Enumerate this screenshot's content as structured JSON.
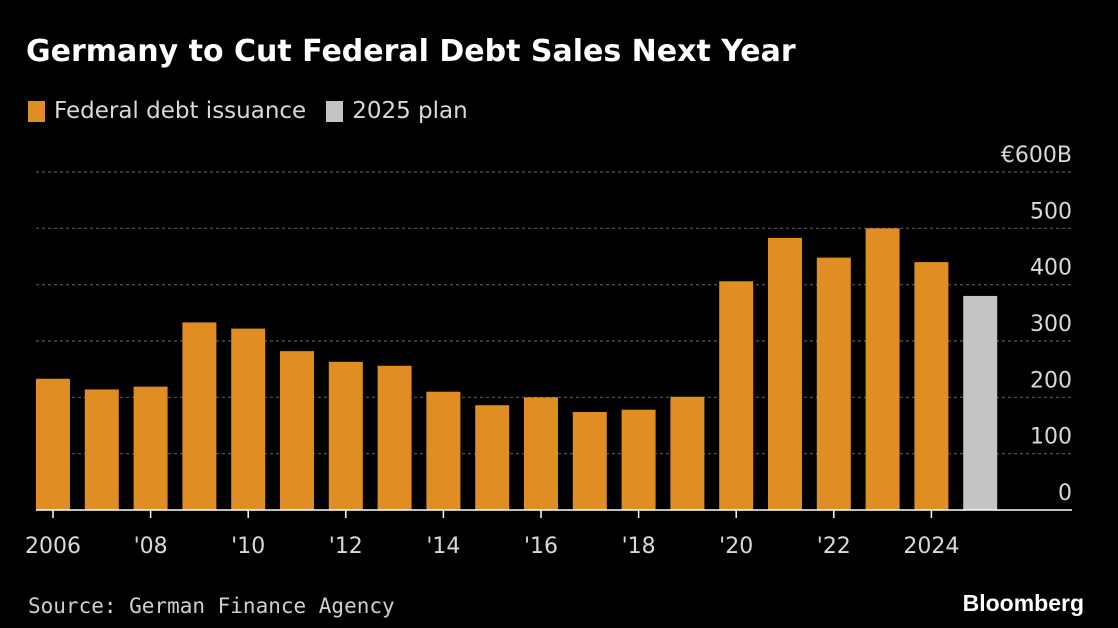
{
  "title": "Germany to Cut Federal Debt Sales Next Year",
  "legend": [
    {
      "label": "Federal debt issuance",
      "color": "#e08e24"
    },
    {
      "label": "2025 plan",
      "color": "#c4c4c4"
    }
  ],
  "source": "Source: German Finance Agency",
  "logo": "Bloomberg",
  "chart_data": {
    "type": "bar",
    "categories": [
      "2006",
      "2007",
      "2008",
      "2009",
      "2010",
      "2011",
      "2012",
      "2013",
      "2014",
      "2015",
      "2016",
      "2017",
      "2018",
      "2019",
      "2020",
      "2021",
      "2022",
      "2023",
      "2024",
      "2025"
    ],
    "series": [
      {
        "name": "Federal debt issuance",
        "values": [
          233,
          214,
          219,
          333,
          322,
          282,
          263,
          256,
          210,
          186,
          200,
          174,
          178,
          201,
          406,
          483,
          448,
          500,
          440,
          null
        ],
        "color": "#e08e24"
      },
      {
        "name": "2025 plan",
        "values": [
          null,
          null,
          null,
          null,
          null,
          null,
          null,
          null,
          null,
          null,
          null,
          null,
          null,
          null,
          null,
          null,
          null,
          null,
          null,
          380
        ],
        "color": "#c4c4c4"
      }
    ],
    "x_tick_labels": [
      {
        "category": "2006",
        "label": "2006"
      },
      {
        "category": "2008",
        "label": "'08"
      },
      {
        "category": "2010",
        "label": "'10"
      },
      {
        "category": "2012",
        "label": "'12"
      },
      {
        "category": "2014",
        "label": "'14"
      },
      {
        "category": "2016",
        "label": "'16"
      },
      {
        "category": "2018",
        "label": "'18"
      },
      {
        "category": "2020",
        "label": "'20"
      },
      {
        "category": "2022",
        "label": "'22"
      },
      {
        "category": "2024",
        "label": "2024"
      }
    ],
    "y_ticks": [
      0,
      100,
      200,
      300,
      400,
      500,
      600
    ],
    "y_tick_labels": [
      "0",
      "100",
      "200",
      "300",
      "400",
      "500",
      "€600B"
    ],
    "ylim": [
      0,
      600
    ],
    "grid": true,
    "legend_position": "top-left",
    "colors": {
      "background": "#000000",
      "grid": "#5a5a5a",
      "axis": "#ffffff",
      "tick_label": "#d9d9d9"
    }
  }
}
